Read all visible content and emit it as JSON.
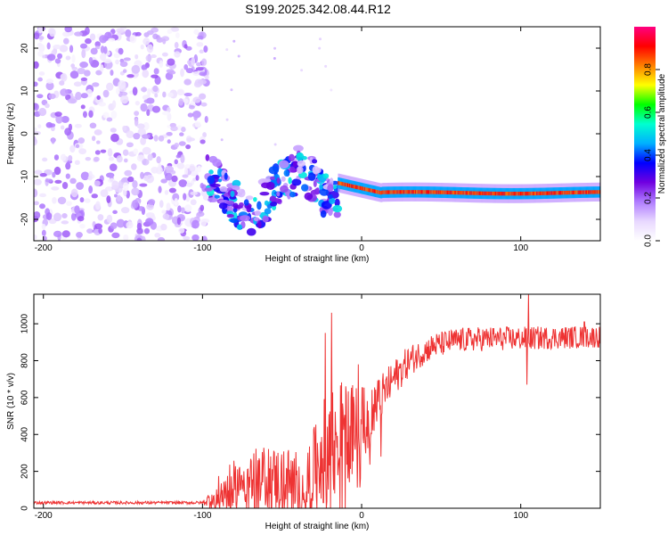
{
  "title": "S199.2025.342.08.44.R12",
  "chart_data": [
    {
      "type": "heatmap",
      "name": "spectrogram",
      "xlabel": "Height of straight line (km)",
      "ylabel": "Frequency (Hz)",
      "xlim": [
        -206,
        150
      ],
      "ylim": [
        -25,
        25
      ],
      "xticks": [
        -200,
        -100,
        0,
        100
      ],
      "yticks": [
        -20,
        -10,
        0,
        10,
        20
      ],
      "colorbar": {
        "label": "Normalized spectral amplitude",
        "range": [
          0,
          1
        ],
        "ticks": [
          0.0,
          0.2,
          0.4,
          0.6,
          0.8
        ],
        "tick_labels": [
          "0.0",
          "0.2",
          "0.4",
          "0.6",
          "0.8"
        ],
        "colors": [
          "#ffffff",
          "#e8d8ff",
          "#b07cff",
          "#7000e0",
          "#0000ff",
          "#00b0ff",
          "#00ffd0",
          "#00ff00",
          "#ffff00",
          "#ff8000",
          "#ff0000",
          "#ff0080"
        ]
      },
      "segments": [
        {
          "name": "noise-region",
          "x_range": [
            -206,
            -97
          ],
          "freq_range": [
            -25,
            25
          ],
          "amplitude": 0.12
        },
        {
          "name": "transition-region",
          "x_range": [
            -97,
            -15
          ],
          "freq_range": [
            -21,
            -7
          ],
          "amplitude": 0.35
        },
        {
          "name": "carrier-line",
          "x_range": [
            -15,
            150
          ],
          "freq_start": -11.5,
          "freq_end": -13.8,
          "freq_settle_x": 12,
          "amplitude": 0.92
        }
      ]
    },
    {
      "type": "line",
      "name": "snr",
      "xlabel": "Height of straight line (km)",
      "ylabel": "SNR (10 * v/v)",
      "xlim": [
        -206,
        150
      ],
      "ylim": [
        0,
        1160
      ],
      "xticks": [
        -200,
        -100,
        0,
        100
      ],
      "yticks": [
        0,
        200,
        400,
        600,
        800,
        1000
      ],
      "color": "#ee3333",
      "trend": [
        {
          "x": -206,
          "y": 30
        },
        {
          "x": -100,
          "y": 30
        },
        {
          "x": -92,
          "y": 60
        },
        {
          "x": -80,
          "y": 140
        },
        {
          "x": -65,
          "y": 180
        },
        {
          "x": -50,
          "y": 150
        },
        {
          "x": -35,
          "y": 130
        },
        {
          "x": -25,
          "y": 300
        },
        {
          "x": -15,
          "y": 420
        },
        {
          "x": -5,
          "y": 450
        },
        {
          "x": 5,
          "y": 520
        },
        {
          "x": 12,
          "y": 600
        },
        {
          "x": 20,
          "y": 700
        },
        {
          "x": 30,
          "y": 800
        },
        {
          "x": 45,
          "y": 880
        },
        {
          "x": 60,
          "y": 910
        },
        {
          "x": 80,
          "y": 920
        },
        {
          "x": 100,
          "y": 920
        },
        {
          "x": 120,
          "y": 925
        },
        {
          "x": 150,
          "y": 930
        }
      ],
      "noise": [
        {
          "x": -206,
          "amp": 8
        },
        {
          "x": -100,
          "amp": 8
        },
        {
          "x": -90,
          "amp": 100
        },
        {
          "x": -60,
          "amp": 170
        },
        {
          "x": -30,
          "amp": 220
        },
        {
          "x": -20,
          "amp": 320
        },
        {
          "x": 0,
          "amp": 180
        },
        {
          "x": 15,
          "amp": 110
        },
        {
          "x": 40,
          "amp": 70
        },
        {
          "x": 150,
          "amp": 60
        }
      ],
      "spikes": [
        {
          "x": -23,
          "y": 950
        },
        {
          "x": -19,
          "y": 1060
        },
        {
          "x": -17,
          "y": 80
        },
        {
          "x": -24,
          "y": 30
        },
        {
          "x": -2,
          "y": 780
        },
        {
          "x": 12,
          "y": 280
        },
        {
          "x": 105,
          "y": 1160
        },
        {
          "x": 104,
          "y": 670
        },
        {
          "x": 140,
          "y": 1010
        }
      ]
    }
  ]
}
